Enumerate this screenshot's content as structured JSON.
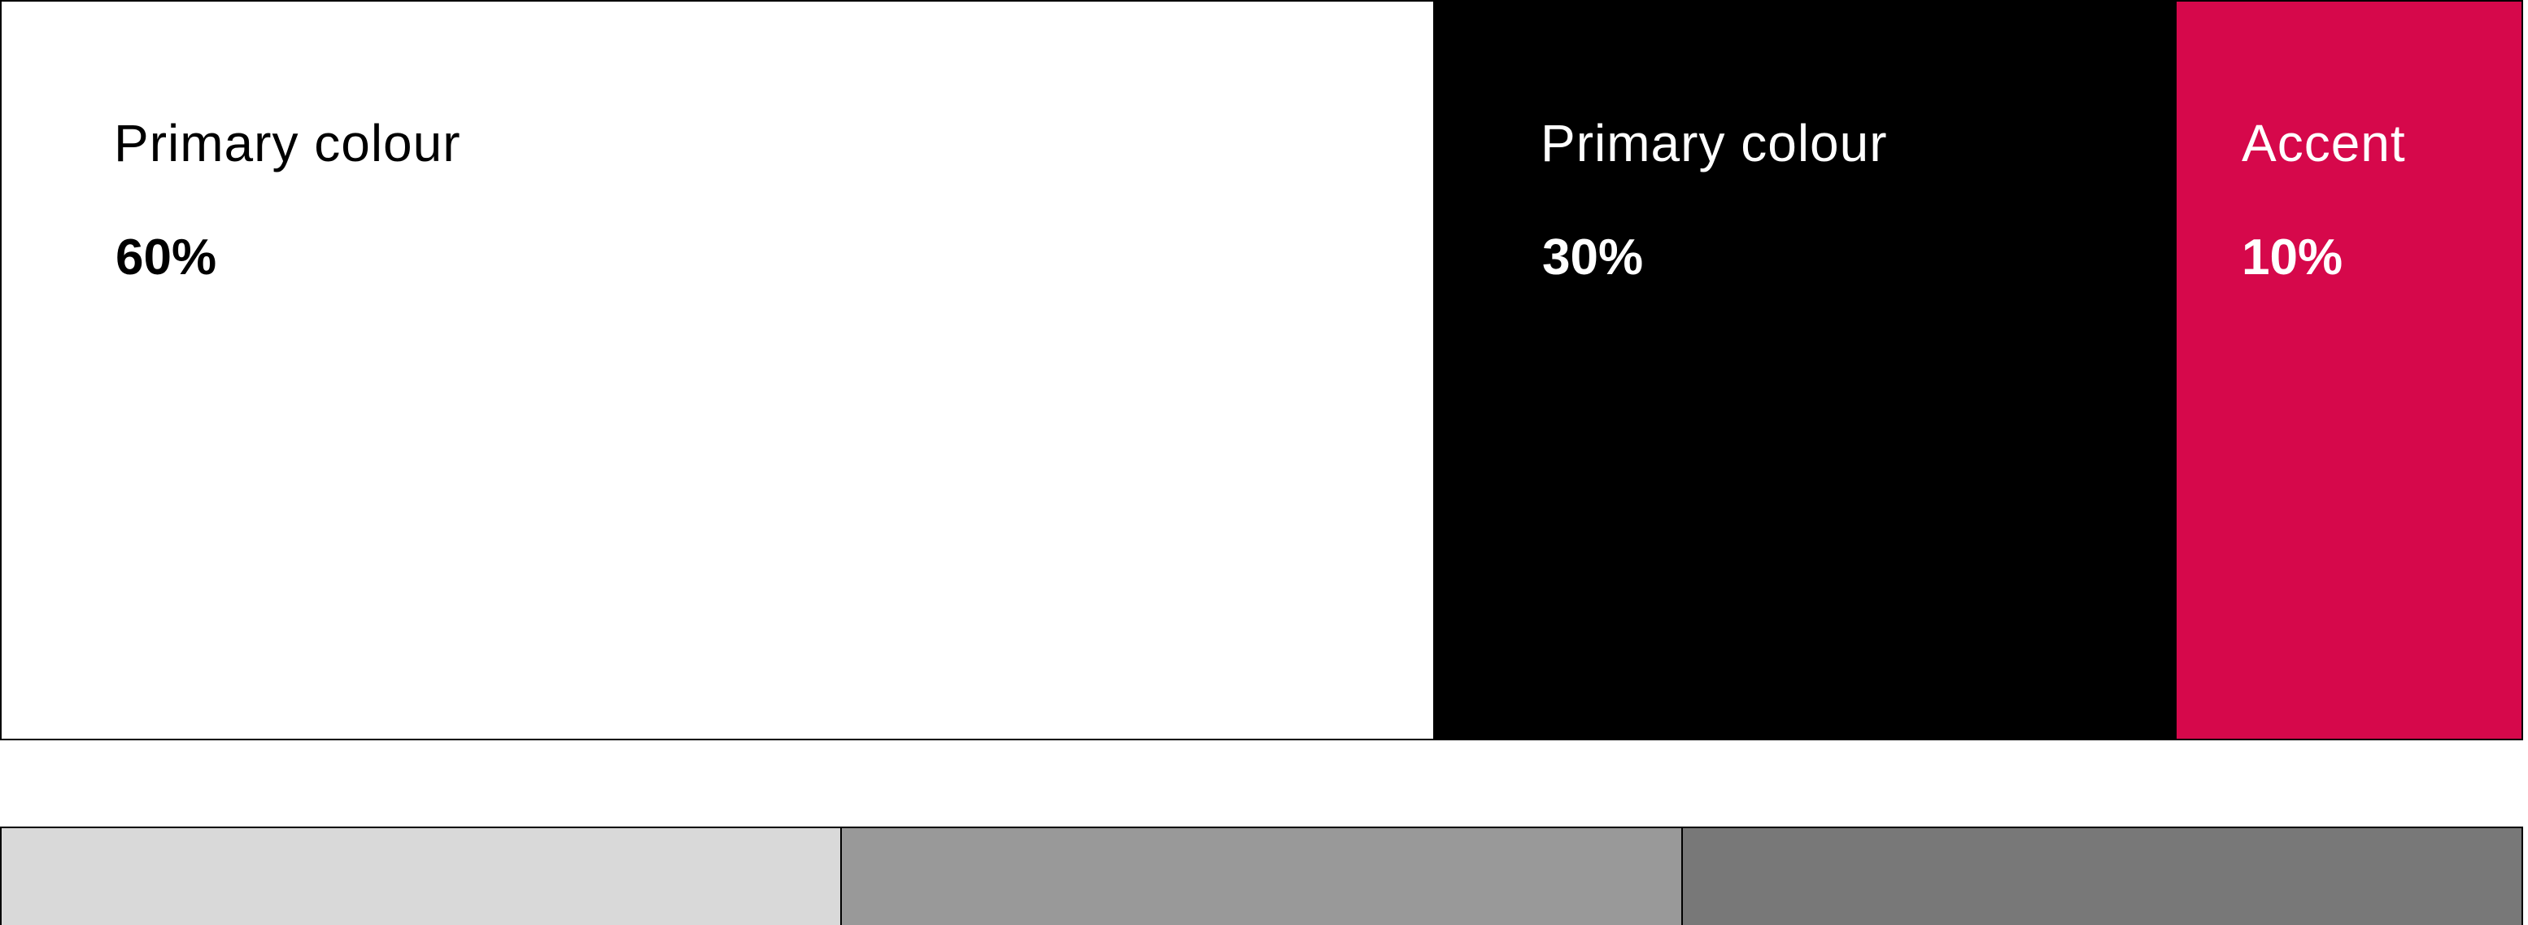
{
  "swatches": [
    {
      "label": "Primary colour",
      "percent": "60%",
      "bg": "#ffffff",
      "fg": "#000000",
      "share": 60
    },
    {
      "label": "Primary colour",
      "percent": "30%",
      "bg": "#000000",
      "fg": "#ffffff",
      "share": 30
    },
    {
      "label": "Accent",
      "percent": "10%",
      "bg": "#d6084b",
      "fg": "#ffffff",
      "share": 10
    }
  ],
  "shades": [
    {
      "color": "#d9d9d9"
    },
    {
      "color": "#999999"
    },
    {
      "color": "#787878"
    }
  ]
}
